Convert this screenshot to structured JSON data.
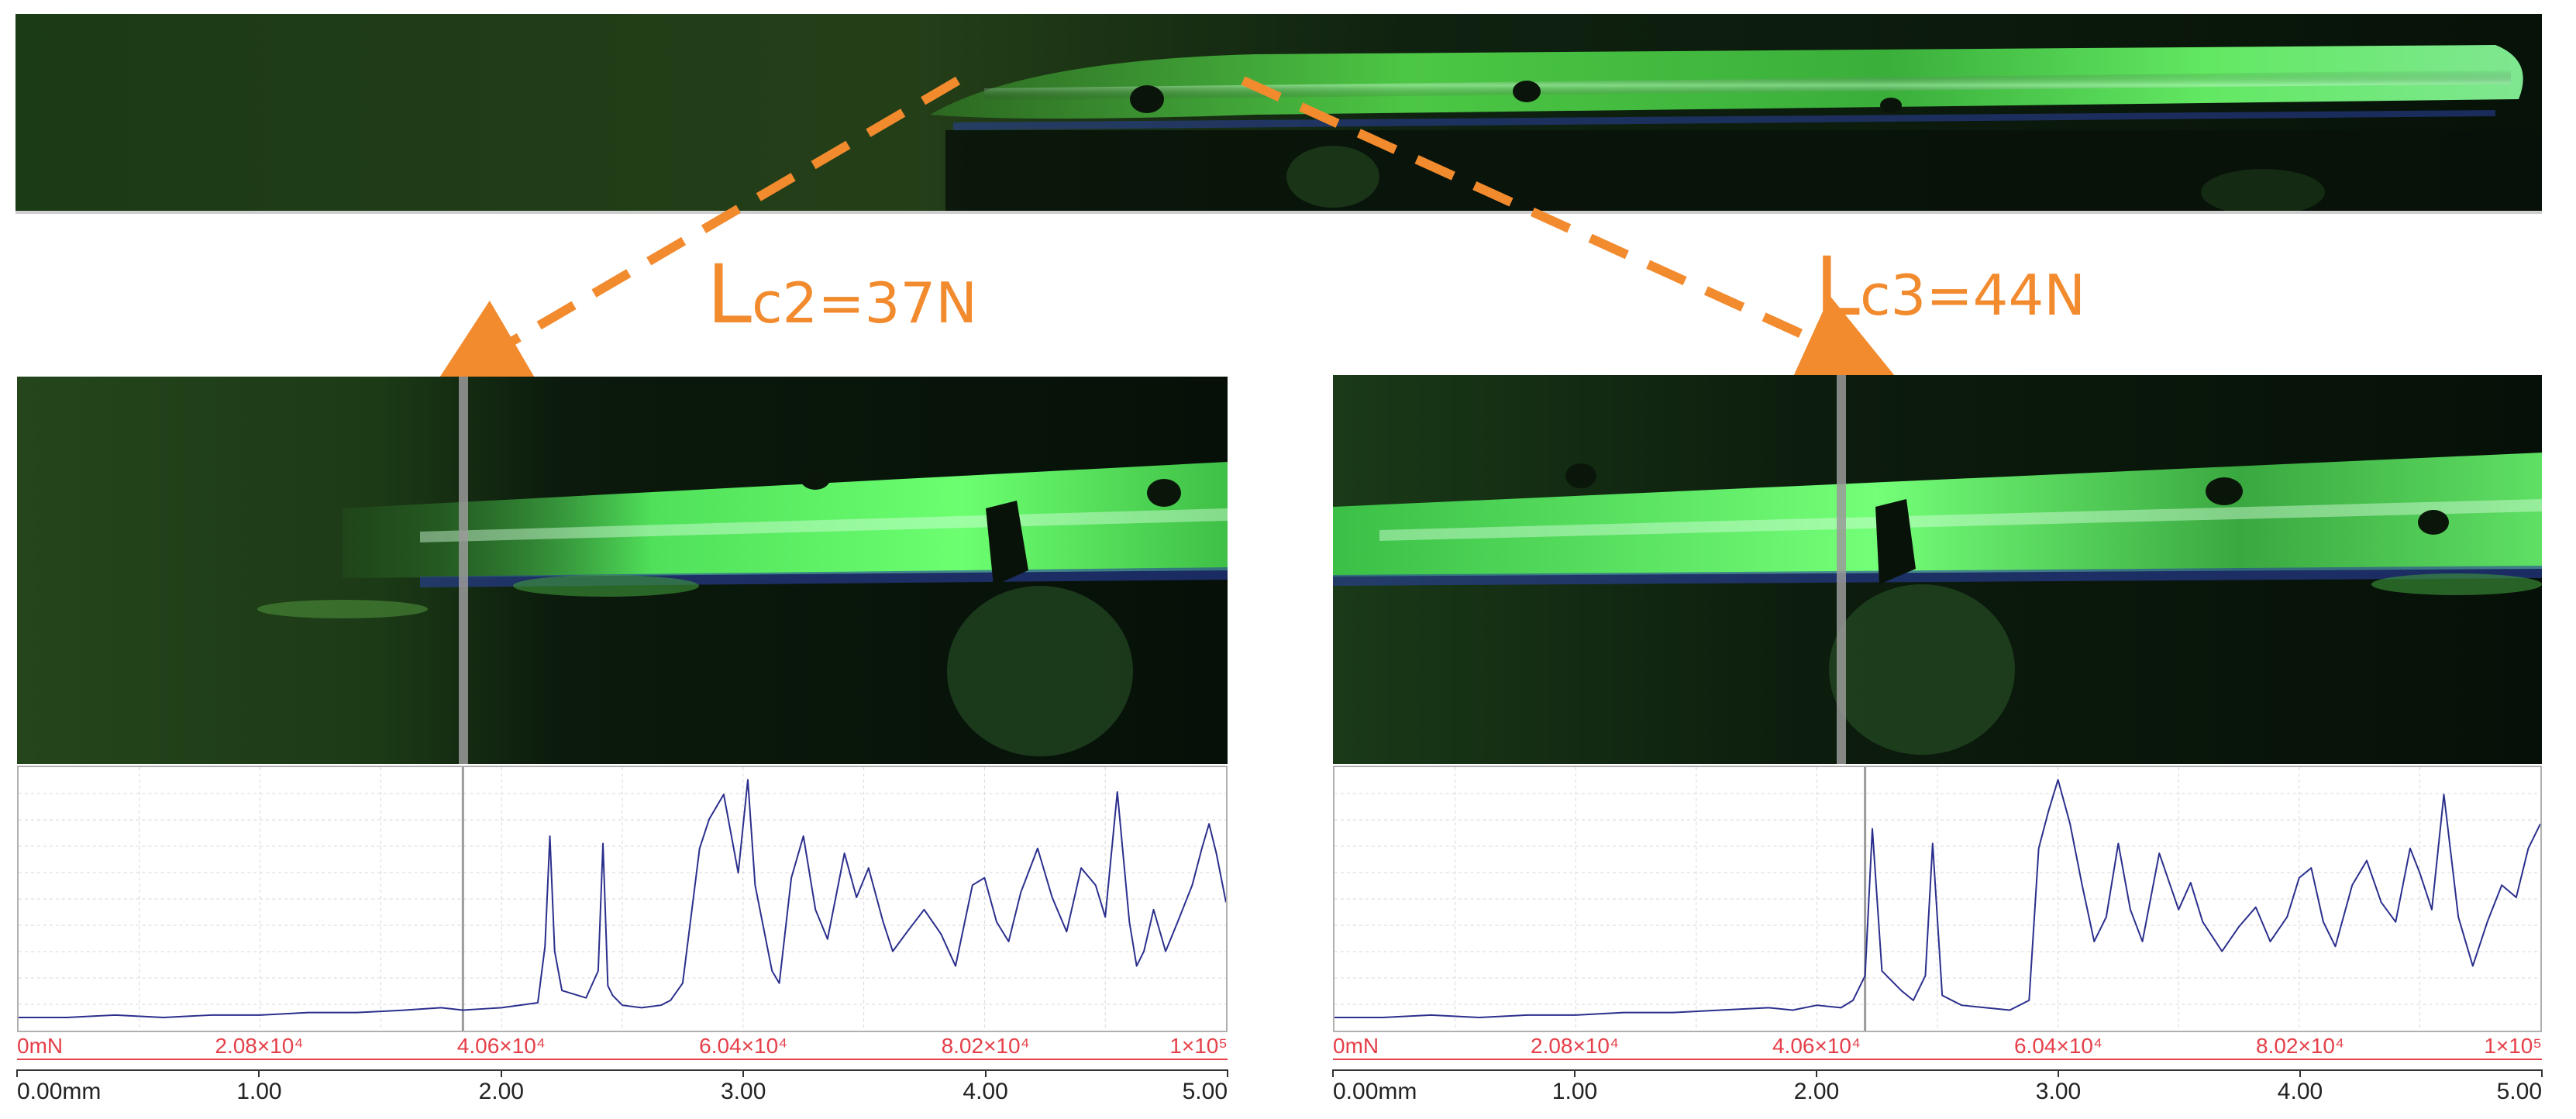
{
  "colors": {
    "annotation": "#f28a2e",
    "trace": "#2b2f8c",
    "force_axis": "#e5404a",
    "distance_axis": "#222222",
    "marker_line": "#9a9a9a",
    "grid": "#d7d7d7",
    "micrograph_bright": "#4cff62",
    "micrograph_dark": "#07130a"
  },
  "annotations": {
    "lc2": {
      "prefix": "L",
      "rest": "c2=37N"
    },
    "lc3": {
      "prefix": "L",
      "rest": "c3=44N"
    }
  },
  "chart_data": [
    {
      "type": "line",
      "id": "scratch-signal-lc2",
      "title": "",
      "xlabel": "",
      "ylabel": "",
      "x_axis_distance": {
        "ticks": [
          "0.00mm",
          "1.00",
          "2.00",
          "3.00",
          "4.00",
          "5.00"
        ],
        "range": [
          0,
          5
        ]
      },
      "x_axis_force": {
        "ticks": [
          "0mN",
          "2.08×10⁴",
          "4.06×10⁴",
          "6.04×10⁴",
          "8.02×10⁴",
          "1×10⁵"
        ],
        "range": [
          0,
          100000
        ]
      },
      "y_range": [
        0,
        100
      ],
      "grid": true,
      "marker": {
        "distance_mm": 1.84,
        "label": "Lc2=37N"
      },
      "series": [
        {
          "x": [
            0,
            0.2,
            0.4,
            0.6,
            0.8,
            1.0,
            1.2,
            1.4,
            1.6,
            1.75,
            1.84,
            2.0,
            2.15,
            2.18,
            2.2,
            2.22,
            2.25,
            2.35,
            2.4,
            2.42,
            2.44,
            2.46,
            2.5,
            2.58,
            2.66,
            2.7,
            2.75,
            2.82,
            2.86,
            2.92,
            2.98,
            3.02,
            3.05,
            3.08,
            3.12,
            3.15,
            3.2,
            3.25,
            3.3,
            3.35,
            3.42,
            3.47,
            3.52,
            3.58,
            3.62,
            3.68,
            3.75,
            3.82,
            3.88,
            3.95,
            4.0,
            4.05,
            4.1,
            4.15,
            4.22,
            4.28,
            4.34,
            4.4,
            4.46,
            4.5,
            4.55,
            4.6,
            4.63,
            4.66,
            4.7,
            4.75,
            4.8,
            4.86,
            4.9,
            4.93,
            4.96,
            5.0
          ],
          "values": [
            1,
            1,
            2,
            1,
            2,
            2,
            3,
            3,
            4,
            5,
            4,
            5,
            7,
            30,
            75,
            28,
            12,
            9,
            20,
            72,
            14,
            10,
            6,
            5,
            6,
            8,
            15,
            70,
            82,
            92,
            60,
            98,
            55,
            40,
            20,
            15,
            58,
            75,
            45,
            33,
            68,
            50,
            62,
            40,
            28,
            36,
            45,
            35,
            22,
            55,
            58,
            40,
            32,
            52,
            70,
            50,
            36,
            62,
            55,
            42,
            93,
            40,
            22,
            28,
            45,
            28,
            40,
            55,
            70,
            80,
            68,
            48
          ]
        }
      ]
    },
    {
      "type": "line",
      "id": "scratch-signal-lc3",
      "title": "",
      "xlabel": "",
      "ylabel": "",
      "x_axis_distance": {
        "ticks": [
          "0.00mm",
          "1.00",
          "2.00",
          "3.00",
          "4.00",
          "5.00"
        ],
        "range": [
          0,
          5
        ]
      },
      "x_axis_force": {
        "ticks": [
          "0mN",
          "2.08×10⁴",
          "4.06×10⁴",
          "6.04×10⁴",
          "8.02×10⁴",
          "1×10⁵"
        ],
        "range": [
          0,
          100000
        ]
      },
      "y_range": [
        0,
        100
      ],
      "grid": true,
      "marker": {
        "distance_mm": 2.2,
        "label": "Lc3=44N"
      },
      "series": [
        {
          "x": [
            0,
            0.2,
            0.4,
            0.6,
            0.8,
            1.0,
            1.2,
            1.4,
            1.6,
            1.8,
            1.9,
            2.0,
            2.1,
            2.15,
            2.2,
            2.23,
            2.27,
            2.35,
            2.4,
            2.45,
            2.48,
            2.52,
            2.6,
            2.7,
            2.8,
            2.88,
            2.92,
            2.96,
            3.0,
            3.05,
            3.1,
            3.15,
            3.2,
            3.25,
            3.3,
            3.35,
            3.42,
            3.5,
            3.55,
            3.6,
            3.68,
            3.75,
            3.82,
            3.88,
            3.95,
            4.0,
            4.05,
            4.1,
            4.15,
            4.22,
            4.28,
            4.34,
            4.4,
            4.46,
            4.5,
            4.55,
            4.6,
            4.66,
            4.72,
            4.78,
            4.84,
            4.9,
            4.95,
            5.0
          ],
          "values": [
            1,
            1,
            2,
            1,
            2,
            2,
            3,
            3,
            4,
            5,
            4,
            6,
            5,
            8,
            18,
            78,
            20,
            12,
            8,
            18,
            72,
            10,
            6,
            5,
            4,
            8,
            70,
            85,
            98,
            80,
            55,
            32,
            42,
            72,
            45,
            32,
            68,
            45,
            56,
            40,
            28,
            38,
            46,
            32,
            42,
            58,
            62,
            40,
            30,
            55,
            65,
            48,
            40,
            70,
            60,
            45,
            92,
            42,
            22,
            40,
            55,
            50,
            70,
            80
          ]
        }
      ]
    }
  ]
}
